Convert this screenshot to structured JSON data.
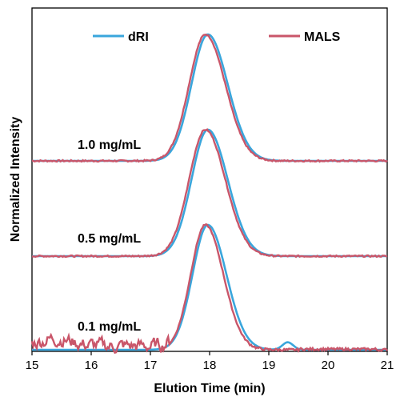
{
  "chart_data": {
    "type": "line",
    "title": "",
    "xlabel": "Elution Time (min)",
    "ylabel": "Normalized Intensity",
    "xlim": [
      15,
      21
    ],
    "x_ticks": [
      "15",
      "16",
      "17",
      "18",
      "19",
      "20",
      "21"
    ],
    "grid": false,
    "legend_position": "top",
    "series": [
      {
        "name": "dRI",
        "color": "#3aa6dc"
      },
      {
        "name": "MALS",
        "color": "#c9566a"
      }
    ],
    "panels": [
      {
        "label": "1.0 mg/mL",
        "dRI": {
          "peak_x": 17.97,
          "sigma": 0.3
        },
        "MALS": {
          "peak_x": 17.93,
          "sigma": 0.3
        }
      },
      {
        "label": "0.5 mg/mL",
        "dRI": {
          "peak_x": 17.97,
          "sigma": 0.3
        },
        "MALS": {
          "peak_x": 17.93,
          "sigma": 0.3
        }
      },
      {
        "label": "0.1 mg/mL",
        "dRI": {
          "peak_x": 17.97,
          "sigma": 0.28,
          "secondary_peak_x": 19.32,
          "secondary_height": 0.06
        },
        "MALS": {
          "peak_x": 17.93,
          "sigma": 0.27,
          "noise_region": [
            15.0,
            17.3
          ]
        }
      }
    ]
  }
}
